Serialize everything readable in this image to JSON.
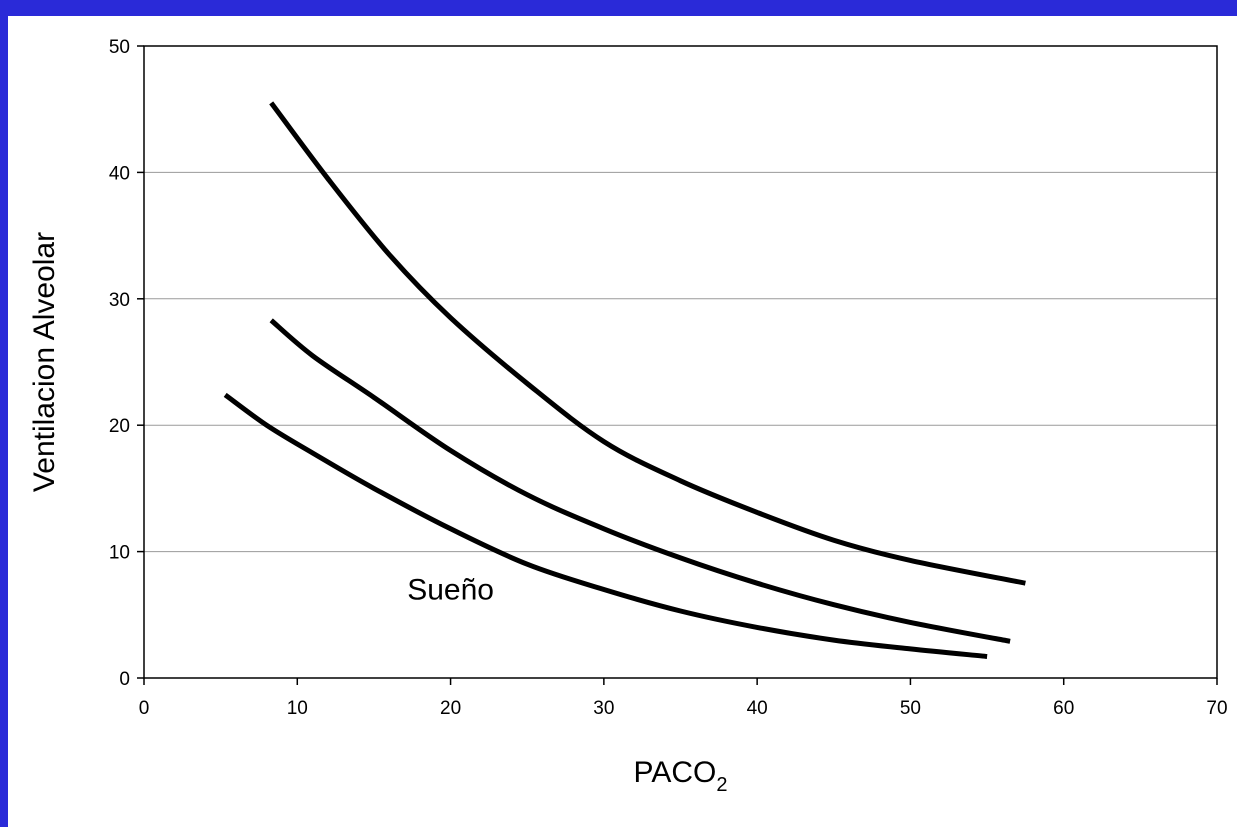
{
  "colors": {
    "frame": "#2a2ad8",
    "background": "#ffffff",
    "curves": "#000000",
    "gridlines": "#9a9a9a",
    "axes": "#000000"
  },
  "chart_data": {
    "type": "line",
    "title": "",
    "xlabel": "PACO",
    "xlabel_subscript": "2",
    "ylabel": "Ventilacion Alveolar",
    "xlim": [
      0,
      70
    ],
    "ylim": [
      0,
      50
    ],
    "x_ticks": [
      "0",
      "10",
      "20",
      "30",
      "40",
      "50",
      "60",
      "70"
    ],
    "y_ticks": [
      "0",
      "10",
      "20",
      "30",
      "40",
      "50"
    ],
    "grid": "horizontal",
    "legend": "none",
    "annotations": [
      {
        "text": "Sueño",
        "x": 20,
        "y": 7
      }
    ],
    "series": [
      {
        "x": [
          8.3,
          12,
          16,
          20,
          25,
          30,
          35,
          40,
          45,
          50,
          57.5
        ],
        "values": [
          45.5,
          39.5,
          33.5,
          28.5,
          23.3,
          18.7,
          15.6,
          13.1,
          10.9,
          9.3,
          7.5
        ]
      },
      {
        "x": [
          8.3,
          11,
          15,
          20,
          25,
          30,
          35,
          40,
          45,
          50,
          56.5
        ],
        "values": [
          28.3,
          25.5,
          22.2,
          18,
          14.5,
          11.8,
          9.5,
          7.5,
          5.8,
          4.4,
          2.9
        ]
      },
      {
        "x": [
          5.3,
          8,
          11,
          15,
          20,
          25,
          30,
          35,
          40,
          45,
          50,
          55
        ],
        "values": [
          22.4,
          20,
          17.8,
          15,
          11.8,
          9,
          7,
          5.3,
          4,
          3,
          2.3,
          1.7
        ]
      }
    ]
  }
}
